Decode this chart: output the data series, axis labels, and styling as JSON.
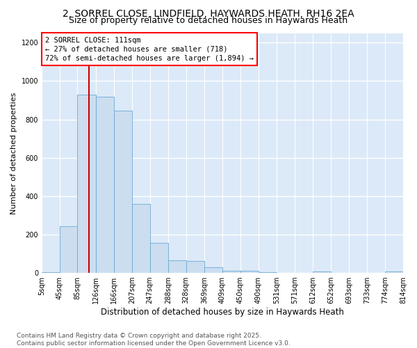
{
  "title1": "2, SORREL CLOSE, LINDFIELD, HAYWARDS HEATH, RH16 2EA",
  "title2": "Size of property relative to detached houses in Haywards Heath",
  "xlabel": "Distribution of detached houses by size in Haywards Heath",
  "ylabel": "Number of detached properties",
  "bar_color": "#ccddf0",
  "bar_edge_color": "#6aaad4",
  "vline_color": "#cc0000",
  "subject_size": 111,
  "annotation_line1": "2 SORREL CLOSE: 111sqm",
  "annotation_line2": "← 27% of detached houses are smaller (718)",
  "annotation_line3": "72% of semi-detached houses are larger (1,894) →",
  "bins": [
    5,
    45,
    85,
    126,
    166,
    207,
    247,
    288,
    328,
    369,
    409,
    450,
    490,
    531,
    571,
    612,
    652,
    693,
    733,
    774,
    814
  ],
  "counts": [
    5,
    245,
    930,
    920,
    845,
    358,
    155,
    65,
    62,
    28,
    12,
    12,
    5,
    0,
    0,
    8,
    0,
    0,
    0,
    8,
    0
  ],
  "ylim": [
    0,
    1250
  ],
  "yticks": [
    0,
    200,
    400,
    600,
    800,
    1000,
    1200
  ],
  "background_color": "#dce9f8",
  "grid_color": "#ffffff",
  "footer_text": "Contains HM Land Registry data © Crown copyright and database right 2025.\nContains public sector information licensed under the Open Government Licence v3.0.",
  "title1_fontsize": 10,
  "title2_fontsize": 9,
  "xlabel_fontsize": 8.5,
  "ylabel_fontsize": 8,
  "tick_fontsize": 7,
  "annotation_fontsize": 7.5,
  "footer_fontsize": 6.5
}
